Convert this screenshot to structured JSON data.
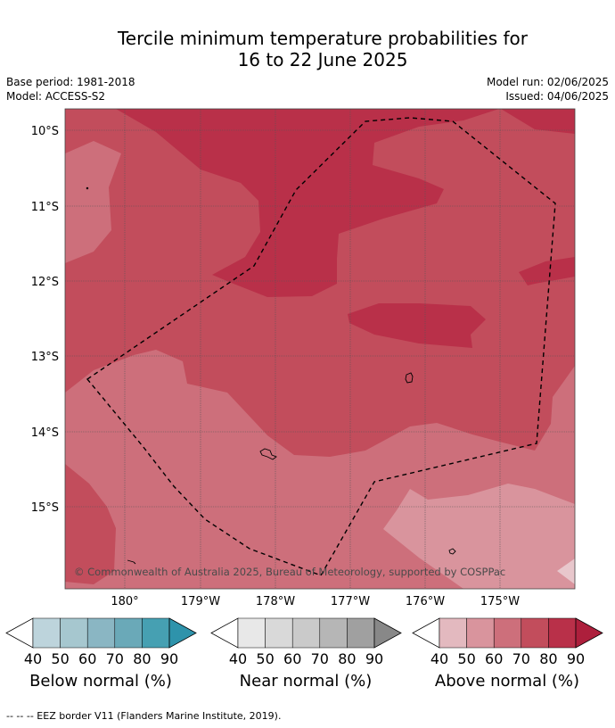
{
  "title_line1": "Tercile minimum temperature probabilities for",
  "title_line2": "16 to 22 June 2025",
  "base_period": "Base period: 1981-2018",
  "model": "Model: ACCESS-S2",
  "model_run": "Model run: 02/06/2025",
  "issued": "Issued: 04/06/2025",
  "map": {
    "lat_labels": [
      "10°S",
      "11°S",
      "12°S",
      "13°S",
      "14°S",
      "15°S"
    ],
    "lon_labels": [
      "180°",
      "179°W",
      "178°W",
      "177°W",
      "176°W",
      "175°W"
    ],
    "attribution": "© Commonwealth of Australia 2025, Bureau of Meteorology, supported by COSPPac",
    "colors": {
      "above_50": "#d9949d",
      "above_60": "#cd6f7b",
      "above_70": "#c24d5c",
      "above_80": "#b93049"
    }
  },
  "colorbars": [
    {
      "name": "Below normal (%)",
      "ticks": [
        "40",
        "50",
        "60",
        "70",
        "80",
        "90"
      ],
      "colors": [
        "#ffffff",
        "#bdd4dc",
        "#a6c7cf",
        "#8ab6c3",
        "#6aa9b8",
        "#46a0b2",
        "#2e93ab"
      ]
    },
    {
      "name": "Near normal (%)",
      "ticks": [
        "40",
        "50",
        "60",
        "70",
        "80",
        "90"
      ],
      "colors": [
        "#ffffff",
        "#e8e8e8",
        "#d9d9d9",
        "#cacaca",
        "#b6b6b6",
        "#a0a0a0",
        "#888888"
      ]
    },
    {
      "name": "Above normal (%)",
      "ticks": [
        "40",
        "50",
        "60",
        "70",
        "80",
        "90"
      ],
      "colors": [
        "#ffffff",
        "#e3b9bf",
        "#d9949d",
        "#cd6f7b",
        "#c24d5c",
        "#b93049",
        "#ad1f3c"
      ]
    }
  ],
  "footnote": "--  --  -- EEZ border V11 (Flanders Marine Institute, 2019)."
}
